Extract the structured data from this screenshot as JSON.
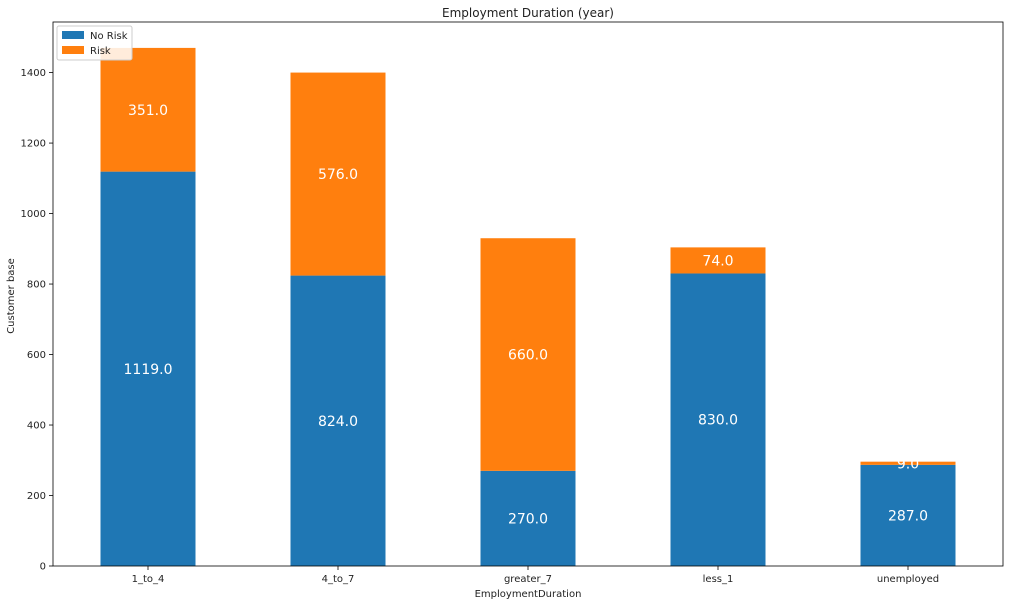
{
  "chart_data": {
    "type": "bar",
    "stacked": true,
    "title": "Employment Duration (year)",
    "xlabel": "EmploymentDuration",
    "ylabel": "Customer base",
    "categories": [
      "1_to_4",
      "4_to_7",
      "greater_7",
      "less_1",
      "unemployed"
    ],
    "series": [
      {
        "name": "No Risk",
        "values": [
          1119,
          824,
          270,
          830,
          287
        ],
        "color": "#1f77b4"
      },
      {
        "name": "Risk",
        "values": [
          351,
          576,
          660,
          74,
          9
        ],
        "color": "#ff7f0e"
      }
    ],
    "data_labels": [
      [
        "1119.0",
        "824.0",
        "270.0",
        "830.0",
        "287.0"
      ],
      [
        "351.0",
        "576.0",
        "660.0",
        "74.0",
        "9.0"
      ]
    ],
    "yticks": [
      0,
      200,
      400,
      600,
      800,
      1000,
      1200,
      1400
    ],
    "ylim": [
      0,
      1543.5
    ],
    "grid": false,
    "legend": "top-left"
  }
}
